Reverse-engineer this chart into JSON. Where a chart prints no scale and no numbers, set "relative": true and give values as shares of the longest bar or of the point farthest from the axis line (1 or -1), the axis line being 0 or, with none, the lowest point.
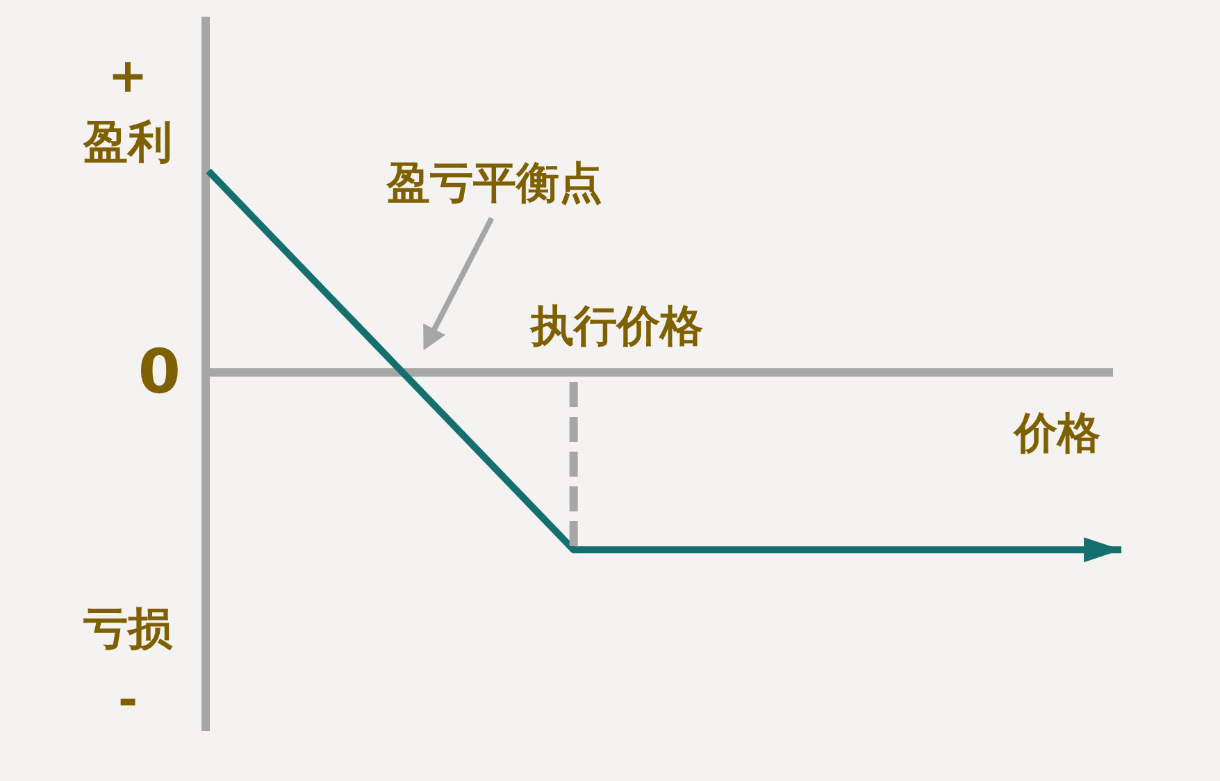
{
  "chart_data": {
    "type": "line",
    "relative": true,
    "categories": [
      null,
      null,
      null,
      null,
      null,
      null
    ],
    "series": [
      {
        "color": "#156f6e",
        "values": [
          1,
          0.06,
          -0.88,
          -0.88,
          -0.88,
          -0.88
        ]
      }
    ],
    "xlabel": "价格",
    "ref_lines": [
      {
        "axis": "y",
        "value": 0,
        "label": "0",
        "color": "#a6a6a6",
        "line_style": "solid"
      }
    ],
    "annotations": [
      "+",
      "盈利",
      "盈亏平衡点",
      "执行价格",
      "亏损",
      "-"
    ],
    "marker": "none",
    "line_style": "solid"
  }
}
